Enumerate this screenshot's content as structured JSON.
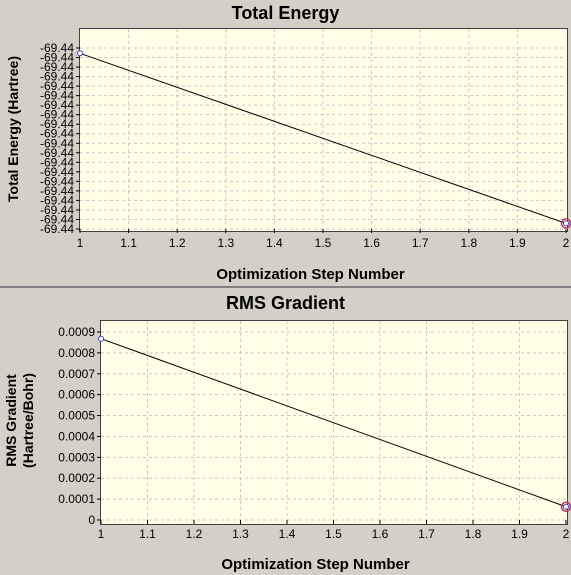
{
  "chart_data": [
    {
      "type": "line",
      "title": "Total Energy",
      "xlabel": "Optimization Step Number",
      "ylabel": "Total Energy (Hartree)",
      "x": [
        1,
        2
      ],
      "y": [
        -69.4351,
        -69.4442
      ],
      "xlim": [
        1,
        2
      ],
      "ylim": [
        -69.4445,
        -69.4338
      ],
      "xticks": [
        "1",
        "1.1",
        "1.2",
        "1.3",
        "1.4",
        "1.5",
        "1.6",
        "1.7",
        "1.8",
        "1.9",
        "2"
      ],
      "yticks": [
        "-69.44",
        "-69.44",
        "-69.44",
        "-69.44",
        "-69.44",
        "-69.44",
        "-69.44",
        "-69.44",
        "-69.44",
        "-69.44",
        "-69.44",
        "-69.44",
        "-69.44",
        "-69.44",
        "-69.44",
        "-69.44",
        "-69.44",
        "-69.44",
        "-69.44",
        "-69.44"
      ],
      "grid": true,
      "line_color": "#000000",
      "marker_color": "#4040c0",
      "highlight_color": "#c0306a"
    },
    {
      "type": "line",
      "title": "RMS Gradient",
      "xlabel": "Optimization Step Number",
      "ylabel": [
        "RMS Gradient",
        "(Hartree/Bohr)"
      ],
      "x": [
        1,
        2
      ],
      "y": [
        0.00082,
        6e-05
      ],
      "xlim": [
        1,
        2
      ],
      "ylim": [
        0,
        0.0009
      ],
      "xticks": [
        "1",
        "1.1",
        "1.2",
        "1.3",
        "1.4",
        "1.5",
        "1.6",
        "1.7",
        "1.8",
        "1.9",
        "2"
      ],
      "yticks": [
        "0",
        "0.0001",
        "0.0002",
        "0.0003",
        "0.0004",
        "0.0005",
        "0.0006",
        "0.0007",
        "0.0008",
        "0.0009"
      ],
      "grid": true,
      "line_color": "#000000",
      "marker_color": "#4040c0",
      "highlight_color": "#c0306a"
    }
  ]
}
